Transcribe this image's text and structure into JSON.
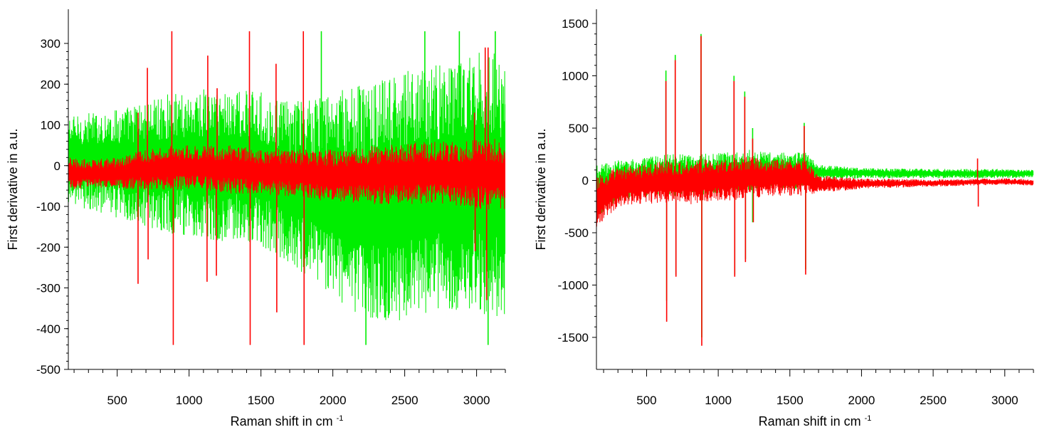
{
  "chart_data": [
    {
      "type": "line",
      "panel": "left",
      "xlabel": "Raman shift in cm",
      "xlabel_sup": "-1",
      "ylabel": "First derivative in a.u.",
      "xlim": [
        160,
        3200
      ],
      "ylim": [
        -500,
        350
      ],
      "x_ticks": [
        500,
        1000,
        1500,
        2000,
        2500,
        3000
      ],
      "y_ticks": [
        300,
        200,
        100,
        0,
        -100,
        -200,
        -300,
        -400,
        -500
      ],
      "grid": false,
      "colors": {
        "green": "#00ee00",
        "red": "#ff0000"
      },
      "series": [
        {
          "color": "#00ee00",
          "envelope": {
            "x": [
              160,
              300,
              500,
              700,
              900,
              1100,
              1300,
              1500,
              1700,
              1900,
              2100,
              2300,
              2500,
              2700,
              2900,
              3100,
              3200
            ],
            "upper": [
              120,
              130,
              140,
              160,
              180,
              190,
              190,
              180,
              160,
              170,
              190,
              210,
              230,
              250,
              270,
              290,
              260
            ],
            "lower": [
              -90,
              -110,
              -130,
              -150,
              -170,
              -180,
              -190,
              -200,
              -240,
              -300,
              -360,
              -380,
              -380,
              -370,
              -350,
              -380,
              -370
            ]
          },
          "peaks": [
            {
              "x": 1920,
              "y": 330
            },
            {
              "x": 2230,
              "y": -440
            },
            {
              "x": 2640,
              "y": 330
            },
            {
              "x": 2880,
              "y": 330
            },
            {
              "x": 3080,
              "y": -440
            },
            {
              "x": 3130,
              "y": 330
            }
          ]
        },
        {
          "color": "#ff0000",
          "envelope": {
            "x": [
              160,
              300,
              500,
              700,
              900,
              1100,
              1300,
              1500,
              1700,
              1900,
              2100,
              2300,
              2500,
              2700,
              2900,
              3100,
              3200
            ],
            "upper": [
              20,
              15,
              20,
              40,
              50,
              50,
              50,
              40,
              40,
              40,
              40,
              50,
              55,
              60,
              60,
              70,
              60
            ],
            "lower": [
              -60,
              -55,
              -55,
              -60,
              -60,
              -60,
              -70,
              -70,
              -75,
              -85,
              -90,
              -95,
              -95,
              -95,
              -100,
              -110,
              -110
            ]
          },
          "peaks": [
            {
              "x": 645,
              "y": -290
            },
            {
              "x": 645,
              "y": 130
            },
            {
              "x": 710,
              "y": 240
            },
            {
              "x": 715,
              "y": -230
            },
            {
              "x": 880,
              "y": 330
            },
            {
              "x": 890,
              "y": -440
            },
            {
              "x": 1125,
              "y": -285
            },
            {
              "x": 1130,
              "y": 270
            },
            {
              "x": 1190,
              "y": -270
            },
            {
              "x": 1195,
              "y": 190
            },
            {
              "x": 1420,
              "y": 330
            },
            {
              "x": 1425,
              "y": -440
            },
            {
              "x": 1605,
              "y": 250
            },
            {
              "x": 1610,
              "y": -360
            },
            {
              "x": 1795,
              "y": 330
            },
            {
              "x": 1800,
              "y": -440
            },
            {
              "x": 2985,
              "y": 130
            },
            {
              "x": 2990,
              "y": -210
            },
            {
              "x": 3060,
              "y": 290
            },
            {
              "x": 3070,
              "y": -330
            },
            {
              "x": 3080,
              "y": 290
            }
          ]
        }
      ]
    },
    {
      "type": "line",
      "panel": "right",
      "xlabel": "Raman shift in cm",
      "xlabel_sup": "-1",
      "ylabel": "First derivative in a.u.",
      "xlim": [
        150,
        3200
      ],
      "ylim": [
        -1800,
        1500
      ],
      "x_ticks": [
        500,
        1000,
        1500,
        2000,
        2500,
        3000
      ],
      "y_ticks": [
        1500,
        1000,
        500,
        0,
        -500,
        -1000,
        -1500
      ],
      "grid": false,
      "colors": {
        "green": "#00ee00",
        "red": "#ff0000"
      },
      "series": [
        {
          "color": "#00ee00",
          "envelope": {
            "x": [
              150,
              300,
              500,
              600,
              800,
              1000,
              1200,
              1400,
              1600,
              1700,
              2000,
              2500,
              3000,
              3200
            ],
            "upper": [
              150,
              200,
              220,
              250,
              260,
              260,
              300,
              260,
              280,
              150,
              120,
              110,
              110,
              100
            ],
            "lower": [
              -350,
              -200,
              -150,
              -150,
              -150,
              -120,
              -100,
              -80,
              -80,
              0,
              20,
              20,
              20,
              30
            ]
          },
          "peaks": [
            {
              "x": 635,
              "y": 1050
            },
            {
              "x": 640,
              "y": -1150
            },
            {
              "x": 700,
              "y": 1200
            },
            {
              "x": 705,
              "y": -900
            },
            {
              "x": 880,
              "y": 1400
            },
            {
              "x": 885,
              "y": -1500
            },
            {
              "x": 1110,
              "y": 1000
            },
            {
              "x": 1115,
              "y": -900
            },
            {
              "x": 1185,
              "y": 850
            },
            {
              "x": 1190,
              "y": -750
            },
            {
              "x": 1240,
              "y": 500
            },
            {
              "x": 1240,
              "y": -400
            },
            {
              "x": 1600,
              "y": 550
            },
            {
              "x": 1610,
              "y": -850
            }
          ]
        },
        {
          "color": "#ff0000",
          "envelope": {
            "x": [
              150,
              300,
              500,
              600,
              800,
              1000,
              1200,
              1400,
              1600,
              1700,
              2000,
              2500,
              3000,
              3200
            ],
            "upper": [
              50,
              130,
              150,
              180,
              200,
              200,
              230,
              200,
              220,
              50,
              20,
              10,
              20,
              10
            ],
            "lower": [
              -450,
              -250,
              -220,
              -230,
              -230,
              -200,
              -180,
              -150,
              -150,
              -120,
              -80,
              -60,
              -40,
              -50
            ]
          },
          "peaks": [
            {
              "x": 635,
              "y": 950
            },
            {
              "x": 640,
              "y": -1350
            },
            {
              "x": 700,
              "y": 1150
            },
            {
              "x": 705,
              "y": -920
            },
            {
              "x": 880,
              "y": 1380
            },
            {
              "x": 885,
              "y": -1580
            },
            {
              "x": 1110,
              "y": 950
            },
            {
              "x": 1115,
              "y": -920
            },
            {
              "x": 1185,
              "y": 800
            },
            {
              "x": 1190,
              "y": -780
            },
            {
              "x": 1240,
              "y": 400
            },
            {
              "x": 1245,
              "y": -400
            },
            {
              "x": 1600,
              "y": 520
            },
            {
              "x": 1610,
              "y": -900
            },
            {
              "x": 2810,
              "y": 210
            },
            {
              "x": 2815,
              "y": -250
            }
          ]
        }
      ]
    }
  ]
}
